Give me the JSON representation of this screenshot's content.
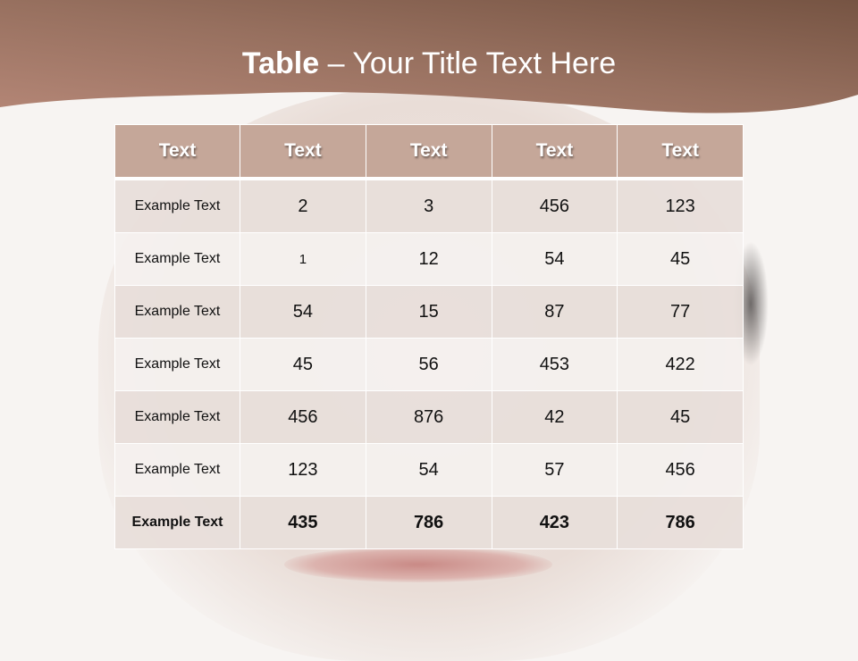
{
  "slide": {
    "title_bold": "Table",
    "title_rest": " – Your Title Text Here",
    "colors": {
      "header_band": "#8a6350",
      "table_header": "#c5a799",
      "row_odd": "#e8ded9",
      "row_even": "#f4f0ee"
    }
  },
  "table": {
    "headers": [
      "Text",
      "Text",
      "Text",
      "Text",
      "Text"
    ],
    "rows": [
      [
        "Example Text",
        "2",
        "3",
        "456",
        "123"
      ],
      [
        "Example Text",
        "1",
        "12",
        "54",
        "45"
      ],
      [
        "Example Text",
        "54",
        "15",
        "87",
        "77"
      ],
      [
        "Example Text",
        "45",
        "56",
        "453",
        "422"
      ],
      [
        "Example Text",
        "456",
        "876",
        "42",
        "45"
      ],
      [
        "Example Text",
        "123",
        "54",
        "57",
        "456"
      ],
      [
        "Example Text",
        "435",
        "786",
        "423",
        "786"
      ]
    ]
  }
}
